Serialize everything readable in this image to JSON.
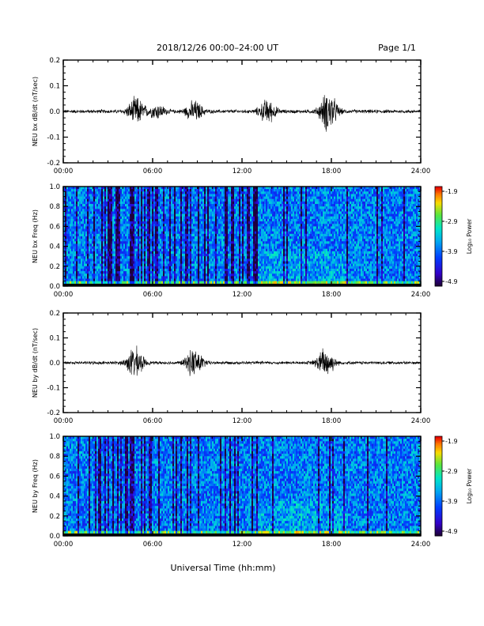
{
  "header": {
    "title": "2018/12/26  00:00–24:00 UT",
    "page": "Page 1/1"
  },
  "footer": {
    "xlabel": "Universal Time (hh:mm)"
  },
  "colorbar": {
    "label": "Log₁₀ Power",
    "ticks": [
      "-1.9",
      "-2.9",
      "-3.9",
      "-4.9"
    ],
    "range": [
      -4.9,
      -1.9
    ]
  },
  "chart_data": [
    {
      "type": "line",
      "ylabel": "NEU bx dB/dt (nT/sec)",
      "xlim": [
        0,
        24
      ],
      "ylim": [
        -0.2,
        0.2
      ],
      "x_ticks": [
        "00:00",
        "06:00",
        "12:00",
        "18:00",
        "24:00"
      ],
      "y_ticks": [
        "0.2",
        "0.1",
        "0.0",
        "-0.1",
        "-0.2"
      ],
      "bursts": [
        {
          "center_hour": 4.9,
          "amplitude": 0.06
        },
        {
          "center_hour": 6.3,
          "amplitude": 0.03
        },
        {
          "center_hour": 8.8,
          "amplitude": 0.045
        },
        {
          "center_hour": 13.7,
          "amplitude": 0.05
        },
        {
          "center_hour": 17.8,
          "amplitude": 0.09
        }
      ],
      "baseline_amplitude": 0.008
    },
    {
      "type": "heatmap",
      "ylabel": "NEU bx Freq (Hz)",
      "xlim": [
        0,
        24
      ],
      "ylim": [
        0.0,
        1.0
      ],
      "x_ticks": [
        "00:00",
        "06:00",
        "12:00",
        "18:00",
        "24:00"
      ],
      "y_ticks": [
        "1.0",
        "0.8",
        "0.6",
        "0.4",
        "0.2",
        "0.0"
      ],
      "zlim": [
        -4.9,
        -1.9
      ]
    },
    {
      "type": "line",
      "ylabel": "NEU by dB/dt (nT/sec)",
      "xlim": [
        0,
        24
      ],
      "ylim": [
        -0.2,
        0.2
      ],
      "x_ticks": [
        "00:00",
        "06:00",
        "12:00",
        "18:00",
        "24:00"
      ],
      "y_ticks": [
        "0.2",
        "0.1",
        "0.0",
        "-0.1",
        "-0.2"
      ],
      "bursts": [
        {
          "center_hour": 4.8,
          "amplitude": 0.07
        },
        {
          "center_hour": 8.8,
          "amplitude": 0.065
        },
        {
          "center_hour": 17.6,
          "amplitude": 0.07
        }
      ],
      "baseline_amplitude": 0.007
    },
    {
      "type": "heatmap",
      "ylabel": "NEU by Freq (Hz)",
      "xlim": [
        0,
        24
      ],
      "ylim": [
        0.0,
        1.0
      ],
      "x_ticks": [
        "00:00",
        "06:00",
        "12:00",
        "18:00",
        "24:00"
      ],
      "y_ticks": [
        "1.0",
        "0.8",
        "0.6",
        "0.4",
        "0.2",
        "0.0"
      ],
      "zlim": [
        -4.9,
        -1.9
      ]
    }
  ]
}
